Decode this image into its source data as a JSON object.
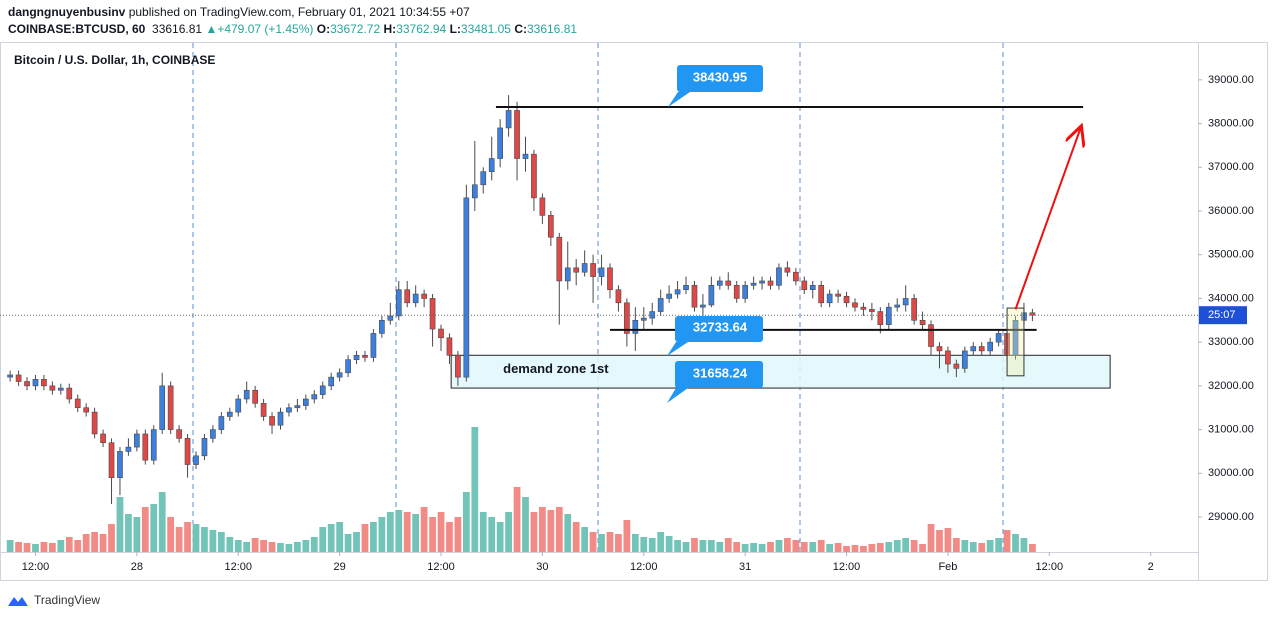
{
  "header": {
    "author": "dangngnuyenbusinv",
    "published": "published on TradingView.com, February 01, 2021 10:34:55 +07",
    "symbol": "COINBASE:BTCUSD, 60",
    "price": "33616.81",
    "change": "+479.07 (+1.45%)",
    "ohlc": [
      {
        "key": "O:",
        "value": "33672.72"
      },
      {
        "key": "H:",
        "value": "33762.94"
      },
      {
        "key": "L:",
        "value": "33481.05"
      },
      {
        "key": "C:",
        "value": "33616.81"
      }
    ]
  },
  "chart_data": {
    "type": "candlestick",
    "title": "Bitcoin / U.S. Dollar, 1h, COINBASE",
    "up_color": "#3d7fdd",
    "down_color": "#e04848",
    "volume_up_color": "#72c4b8",
    "volume_down_color": "#f28a86",
    "open": [
      32200,
      32250,
      32100,
      32000,
      32150,
      32000,
      31900,
      31950,
      31700,
      31500,
      31400,
      30900,
      30700,
      29900,
      30500,
      30600,
      30900,
      30300,
      31000,
      32000,
      31000,
      30800,
      30200,
      30400,
      30800,
      31000,
      31300,
      31400,
      31700,
      31900,
      31600,
      31300,
      31100,
      31400,
      31500,
      31550,
      31700,
      31800,
      32000,
      32200,
      32300,
      32600,
      32700,
      32650,
      33200,
      33500,
      33600,
      34200,
      33900,
      34100,
      34000,
      33300,
      33100,
      32700,
      32200,
      36300,
      36600,
      36900,
      37200,
      37900,
      38300,
      37200,
      37300,
      36300,
      35900,
      35400,
      34400,
      34700,
      34600,
      34800,
      34500,
      34700,
      34200,
      33900,
      33200,
      33500,
      33550,
      33700,
      34000,
      34100,
      34200,
      34300,
      33800,
      33850,
      34300,
      34400,
      34300,
      34000,
      34300,
      34350,
      34400,
      34300,
      34700,
      34600,
      34400,
      34200,
      34300,
      33900,
      34100,
      34050,
      33900,
      33800,
      33750,
      33700,
      33400,
      33800,
      33850,
      34000,
      33500,
      33400,
      32900,
      32800,
      32500,
      32400,
      32800,
      32900,
      32800,
      33000,
      33200,
      32700,
      33500,
      33672.72
    ],
    "high": [
      32350,
      32350,
      32200,
      32250,
      32250,
      32100,
      32050,
      32050,
      31800,
      31600,
      31500,
      31000,
      30800,
      30600,
      30800,
      31000,
      31000,
      31100,
      32300,
      32100,
      31100,
      30900,
      30500,
      30900,
      31100,
      31400,
      31500,
      31800,
      32100,
      32000,
      31700,
      31400,
      31500,
      31600,
      31700,
      31800,
      31900,
      32100,
      32300,
      32400,
      32700,
      32800,
      32800,
      33300,
      33600,
      33900,
      34400,
      34400,
      34300,
      34200,
      34100,
      33400,
      33200,
      32800,
      36600,
      37600,
      37000,
      37700,
      38100,
      38650,
      38500,
      37700,
      37400,
      36400,
      36000,
      35500,
      35300,
      34900,
      35100,
      35000,
      35000,
      34800,
      34300,
      34000,
      33800,
      33800,
      33900,
      34200,
      34300,
      34400,
      34500,
      34400,
      34100,
      34500,
      34500,
      34600,
      34400,
      34400,
      34500,
      34500,
      34500,
      34800,
      34850,
      34700,
      34500,
      34400,
      34400,
      34200,
      34200,
      34150,
      34000,
      33900,
      33900,
      33800,
      33900,
      34000,
      34300,
      34100,
      33700,
      33500,
      33000,
      32900,
      32600,
      32900,
      33000,
      33000,
      33100,
      33300,
      33300,
      33600,
      33900,
      33762.94
    ],
    "low": [
      32100,
      32000,
      31900,
      31900,
      31900,
      31800,
      31800,
      31600,
      31400,
      31300,
      30800,
      30600,
      29300,
      29500,
      30400,
      30500,
      30200,
      30200,
      30900,
      30900,
      30700,
      29900,
      30100,
      30300,
      30700,
      30900,
      31200,
      31300,
      31600,
      31500,
      31200,
      30900,
      31000,
      31300,
      31400,
      31450,
      31600,
      31700,
      31900,
      32100,
      32200,
      32500,
      32550,
      32550,
      33100,
      33400,
      33500,
      33800,
      33800,
      33800,
      32900,
      32800,
      32500,
      32000,
      32100,
      36000,
      36400,
      36700,
      37000,
      37700,
      36700,
      36900,
      36000,
      35700,
      35200,
      33400,
      34200,
      34300,
      34500,
      33900,
      34300,
      34000,
      33700,
      32900,
      32800,
      33300,
      33400,
      33600,
      33900,
      34000,
      34100,
      33700,
      33600,
      33800,
      34200,
      34200,
      33900,
      33900,
      34200,
      34200,
      34200,
      34200,
      34500,
      34300,
      34100,
      34000,
      33800,
      33800,
      33900,
      33800,
      33700,
      33600,
      33500,
      33200,
      33300,
      33700,
      33700,
      33400,
      33300,
      32700,
      32400,
      32300,
      32200,
      32300,
      32700,
      32700,
      32700,
      32900,
      32600,
      32600,
      33400,
      33481.05
    ],
    "close": [
      32250,
      32100,
      32000,
      32150,
      32000,
      31900,
      31950,
      31700,
      31500,
      31400,
      30900,
      30700,
      29900,
      30500,
      30600,
      30900,
      30300,
      31000,
      32000,
      31000,
      30800,
      30200,
      30400,
      30800,
      31000,
      31300,
      31400,
      31700,
      31900,
      31600,
      31300,
      31100,
      31400,
      31500,
      31550,
      31700,
      31800,
      32000,
      32200,
      32300,
      32600,
      32700,
      32650,
      33200,
      33500,
      33600,
      34200,
      33900,
      34100,
      34000,
      33300,
      33100,
      32700,
      32200,
      36300,
      36600,
      36900,
      37200,
      37900,
      38300,
      37200,
      37300,
      36300,
      35900,
      35400,
      34400,
      34700,
      34600,
      34800,
      34500,
      34700,
      34200,
      33900,
      33200,
      33500,
      33550,
      33700,
      34000,
      34100,
      34200,
      34300,
      33800,
      33850,
      34300,
      34400,
      34300,
      34000,
      34300,
      34350,
      34400,
      34300,
      34700,
      34600,
      34400,
      34200,
      34300,
      33900,
      34100,
      34050,
      33900,
      33800,
      33750,
      33700,
      33400,
      33800,
      33850,
      34000,
      33500,
      33400,
      32900,
      32800,
      32500,
      32400,
      32800,
      32900,
      32800,
      33000,
      33200,
      32700,
      33500,
      33672.72,
      33616.81
    ],
    "volume": [
      12,
      10,
      9,
      8,
      10,
      9,
      12,
      15,
      12,
      18,
      20,
      18,
      28,
      55,
      38,
      35,
      45,
      48,
      60,
      35,
      25,
      30,
      28,
      25,
      22,
      20,
      15,
      12,
      10,
      14,
      12,
      10,
      9,
      8,
      10,
      12,
      15,
      25,
      28,
      30,
      18,
      20,
      28,
      30,
      35,
      40,
      42,
      40,
      38,
      45,
      35,
      40,
      30,
      35,
      60,
      125,
      40,
      35,
      30,
      40,
      65,
      55,
      40,
      45,
      42,
      45,
      38,
      30,
      25,
      20,
      18,
      20,
      18,
      32,
      18,
      15,
      14,
      20,
      16,
      12,
      10,
      14,
      12,
      12,
      10,
      14,
      10,
      8,
      9,
      8,
      10,
      12,
      14,
      12,
      10,
      10,
      12,
      8,
      9,
      6,
      7,
      6,
      8,
      9,
      10,
      12,
      14,
      12,
      8,
      28,
      22,
      24,
      14,
      12,
      10,
      9,
      12,
      14,
      22,
      18,
      14,
      8
    ],
    "xlim": [
      -1.2,
      140.6
    ],
    "xticks": [
      {
        "value": 3,
        "label": "12:00"
      },
      {
        "value": 15,
        "label": "28"
      },
      {
        "value": 27,
        "label": "12:00"
      },
      {
        "value": 39,
        "label": "29"
      },
      {
        "value": 51,
        "label": "12:00"
      },
      {
        "value": 63,
        "label": "30"
      },
      {
        "value": 75,
        "label": "12:00"
      },
      {
        "value": 87,
        "label": "31"
      },
      {
        "value": 99,
        "label": "12:00"
      },
      {
        "value": 111,
        "label": "Feb"
      },
      {
        "value": 123,
        "label": "12:00"
      },
      {
        "value": 135,
        "label": "2"
      }
    ],
    "ylim": [
      28200,
      39820
    ],
    "yticks": [
      {
        "value": 29000,
        "label": "29000.00"
      },
      {
        "value": 30000,
        "label": "30000.00"
      },
      {
        "value": 31000,
        "label": "31000.00"
      },
      {
        "value": 32000,
        "label": "32000.00"
      },
      {
        "value": 33000,
        "label": "33000.00"
      },
      {
        "value": 34000,
        "label": "34000.00"
      },
      {
        "value": 35000,
        "label": "35000.00"
      },
      {
        "value": 36000,
        "label": "36000.00"
      },
      {
        "value": 37000,
        "label": "37000.00"
      },
      {
        "value": 38000,
        "label": "38000.00"
      },
      {
        "value": 39000,
        "label": "39000.00"
      }
    ],
    "countdown": "25:07",
    "levels": [
      {
        "value": 38380,
        "from": 57.5,
        "to": 127
      },
      {
        "value": 33280,
        "from": 71,
        "to": 121.5
      }
    ],
    "zone": {
      "label": "demand zone 1st",
      "low": 31950,
      "high": 32700,
      "from": 52.2,
      "to": 130.2
    },
    "highlight": {
      "low": 32230,
      "high": 33780,
      "from": 118,
      "to": 120
    },
    "arrow": {
      "from": [
        119,
        33750
      ],
      "to": [
        126.8,
        37950
      ]
    },
    "callouts": [
      "38430.95",
      "32733.64",
      "31658.24"
    ]
  },
  "footer": {
    "brand": "TradingView"
  }
}
